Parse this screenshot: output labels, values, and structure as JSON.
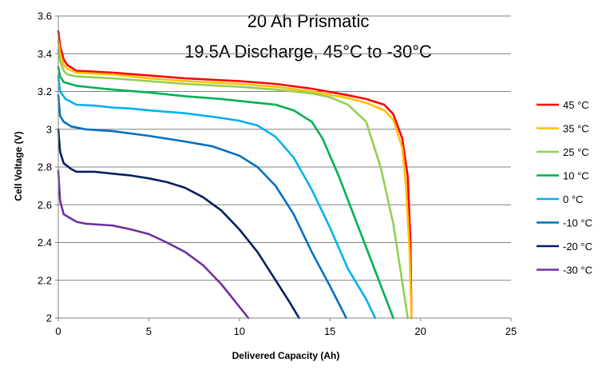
{
  "chart_data": {
    "type": "line",
    "title": [
      "20 Ah Prismatic",
      "19.5A Discharge, 45°C to -30°C"
    ],
    "xlabel": "Delivered Capacity  (Ah)",
    "ylabel": "Cell Voltage  (V)",
    "xlim": [
      0,
      25
    ],
    "ylim": [
      2,
      3.6
    ],
    "xticks": [
      0,
      5,
      10,
      15,
      20,
      25
    ],
    "xtick_labels": [
      "0",
      "5",
      "10",
      "15",
      "20",
      "25"
    ],
    "yticks": [
      2,
      2.2,
      2.4,
      2.6,
      2.8,
      3,
      3.2,
      3.4,
      3.6
    ],
    "ytick_labels": [
      "2",
      "2.2",
      "2.4",
      "2.6",
      "2.8",
      "3",
      "3.2",
      "3.4",
      "3.6"
    ],
    "grid": "horizontal",
    "legend_position": "right",
    "series": [
      {
        "name": "45 °C",
        "color": "#ff0000",
        "points": [
          [
            0,
            3.52
          ],
          [
            0.1,
            3.44
          ],
          [
            0.3,
            3.37
          ],
          [
            0.5,
            3.34
          ],
          [
            1,
            3.31
          ],
          [
            2,
            3.305
          ],
          [
            3,
            3.3
          ],
          [
            5,
            3.285
          ],
          [
            7,
            3.27
          ],
          [
            10,
            3.255
          ],
          [
            12,
            3.24
          ],
          [
            14,
            3.215
          ],
          [
            16,
            3.18
          ],
          [
            17,
            3.16
          ],
          [
            18,
            3.13
          ],
          [
            18.5,
            3.08
          ],
          [
            19,
            2.95
          ],
          [
            19.3,
            2.75
          ],
          [
            19.45,
            2.4
          ],
          [
            19.5,
            2.0
          ]
        ]
      },
      {
        "name": "35 °C",
        "color": "#ffc000",
        "points": [
          [
            0,
            3.47
          ],
          [
            0.1,
            3.4
          ],
          [
            0.3,
            3.34
          ],
          [
            0.5,
            3.32
          ],
          [
            1,
            3.3
          ],
          [
            2,
            3.295
          ],
          [
            3,
            3.29
          ],
          [
            5,
            3.27
          ],
          [
            7,
            3.255
          ],
          [
            10,
            3.24
          ],
          [
            12,
            3.225
          ],
          [
            14,
            3.2
          ],
          [
            16,
            3.165
          ],
          [
            17,
            3.14
          ],
          [
            18,
            3.1
          ],
          [
            18.5,
            3.05
          ],
          [
            19,
            2.9
          ],
          [
            19.2,
            2.7
          ],
          [
            19.4,
            2.35
          ],
          [
            19.5,
            2.0
          ]
        ]
      },
      {
        "name": "25 °C",
        "color": "#92d050",
        "points": [
          [
            0,
            3.42
          ],
          [
            0.1,
            3.36
          ],
          [
            0.3,
            3.31
          ],
          [
            0.5,
            3.29
          ],
          [
            1,
            3.28
          ],
          [
            2,
            3.275
          ],
          [
            3,
            3.27
          ],
          [
            5,
            3.255
          ],
          [
            7,
            3.24
          ],
          [
            10,
            3.225
          ],
          [
            12,
            3.21
          ],
          [
            14,
            3.19
          ],
          [
            15,
            3.17
          ],
          [
            16,
            3.13
          ],
          [
            17,
            3.04
          ],
          [
            17.8,
            2.8
          ],
          [
            18.5,
            2.5
          ],
          [
            18.9,
            2.25
          ],
          [
            19.3,
            2.0
          ]
        ]
      },
      {
        "name": "10 °C",
        "color": "#00b050",
        "points": [
          [
            0,
            3.33
          ],
          [
            0.1,
            3.28
          ],
          [
            0.3,
            3.25
          ],
          [
            1,
            3.23
          ],
          [
            3,
            3.21
          ],
          [
            5,
            3.195
          ],
          [
            7,
            3.175
          ],
          [
            9,
            3.16
          ],
          [
            11,
            3.14
          ],
          [
            12,
            3.13
          ],
          [
            13,
            3.1
          ],
          [
            14,
            3.04
          ],
          [
            14.6,
            2.95
          ],
          [
            15.5,
            2.75
          ],
          [
            16.5,
            2.5
          ],
          [
            17.5,
            2.25
          ],
          [
            18.5,
            2.0
          ]
        ]
      },
      {
        "name": "0 °C",
        "color": "#00b0f0",
        "points": [
          [
            0,
            3.28
          ],
          [
            0.1,
            3.2
          ],
          [
            0.4,
            3.16
          ],
          [
            1,
            3.13
          ],
          [
            2,
            3.125
          ],
          [
            3,
            3.115
          ],
          [
            4,
            3.11
          ],
          [
            5,
            3.1
          ],
          [
            7,
            3.085
          ],
          [
            9,
            3.06
          ],
          [
            10,
            3.045
          ],
          [
            11,
            3.02
          ],
          [
            12,
            2.96
          ],
          [
            13,
            2.85
          ],
          [
            14,
            2.68
          ],
          [
            15,
            2.48
          ],
          [
            16,
            2.26
          ],
          [
            17,
            2.1
          ],
          [
            17.5,
            2.0
          ]
        ]
      },
      {
        "name": "-10 °C",
        "color": "#0070c0",
        "points": [
          [
            0,
            3.18
          ],
          [
            0.1,
            3.07
          ],
          [
            0.3,
            3.04
          ],
          [
            0.7,
            3.015
          ],
          [
            1.5,
            3.0
          ],
          [
            3,
            2.99
          ],
          [
            5,
            2.965
          ],
          [
            7,
            2.935
          ],
          [
            8.5,
            2.91
          ],
          [
            10,
            2.86
          ],
          [
            11,
            2.8
          ],
          [
            12,
            2.7
          ],
          [
            13,
            2.55
          ],
          [
            14,
            2.35
          ],
          [
            15,
            2.17
          ],
          [
            15.8,
            2.02
          ],
          [
            15.9,
            2.0
          ]
        ]
      },
      {
        "name": "-20 °C",
        "color": "#002060",
        "points": [
          [
            0,
            3.0
          ],
          [
            0.1,
            2.88
          ],
          [
            0.3,
            2.82
          ],
          [
            0.7,
            2.79
          ],
          [
            1,
            2.775
          ],
          [
            2,
            2.775
          ],
          [
            3,
            2.765
          ],
          [
            4,
            2.755
          ],
          [
            5,
            2.74
          ],
          [
            6,
            2.72
          ],
          [
            7,
            2.69
          ],
          [
            8,
            2.64
          ],
          [
            9,
            2.57
          ],
          [
            10,
            2.47
          ],
          [
            11,
            2.35
          ],
          [
            12,
            2.2
          ],
          [
            12.8,
            2.08
          ],
          [
            13.3,
            2.0
          ]
        ]
      },
      {
        "name": "-30 °C",
        "color": "#7030a0",
        "points": [
          [
            0,
            2.78
          ],
          [
            0.1,
            2.62
          ],
          [
            0.3,
            2.55
          ],
          [
            1,
            2.51
          ],
          [
            1.5,
            2.5
          ],
          [
            3,
            2.49
          ],
          [
            4,
            2.47
          ],
          [
            5,
            2.445
          ],
          [
            6,
            2.4
          ],
          [
            7,
            2.35
          ],
          [
            8,
            2.28
          ],
          [
            9,
            2.18
          ],
          [
            10,
            2.06
          ],
          [
            10.5,
            2.0
          ]
        ]
      }
    ]
  }
}
